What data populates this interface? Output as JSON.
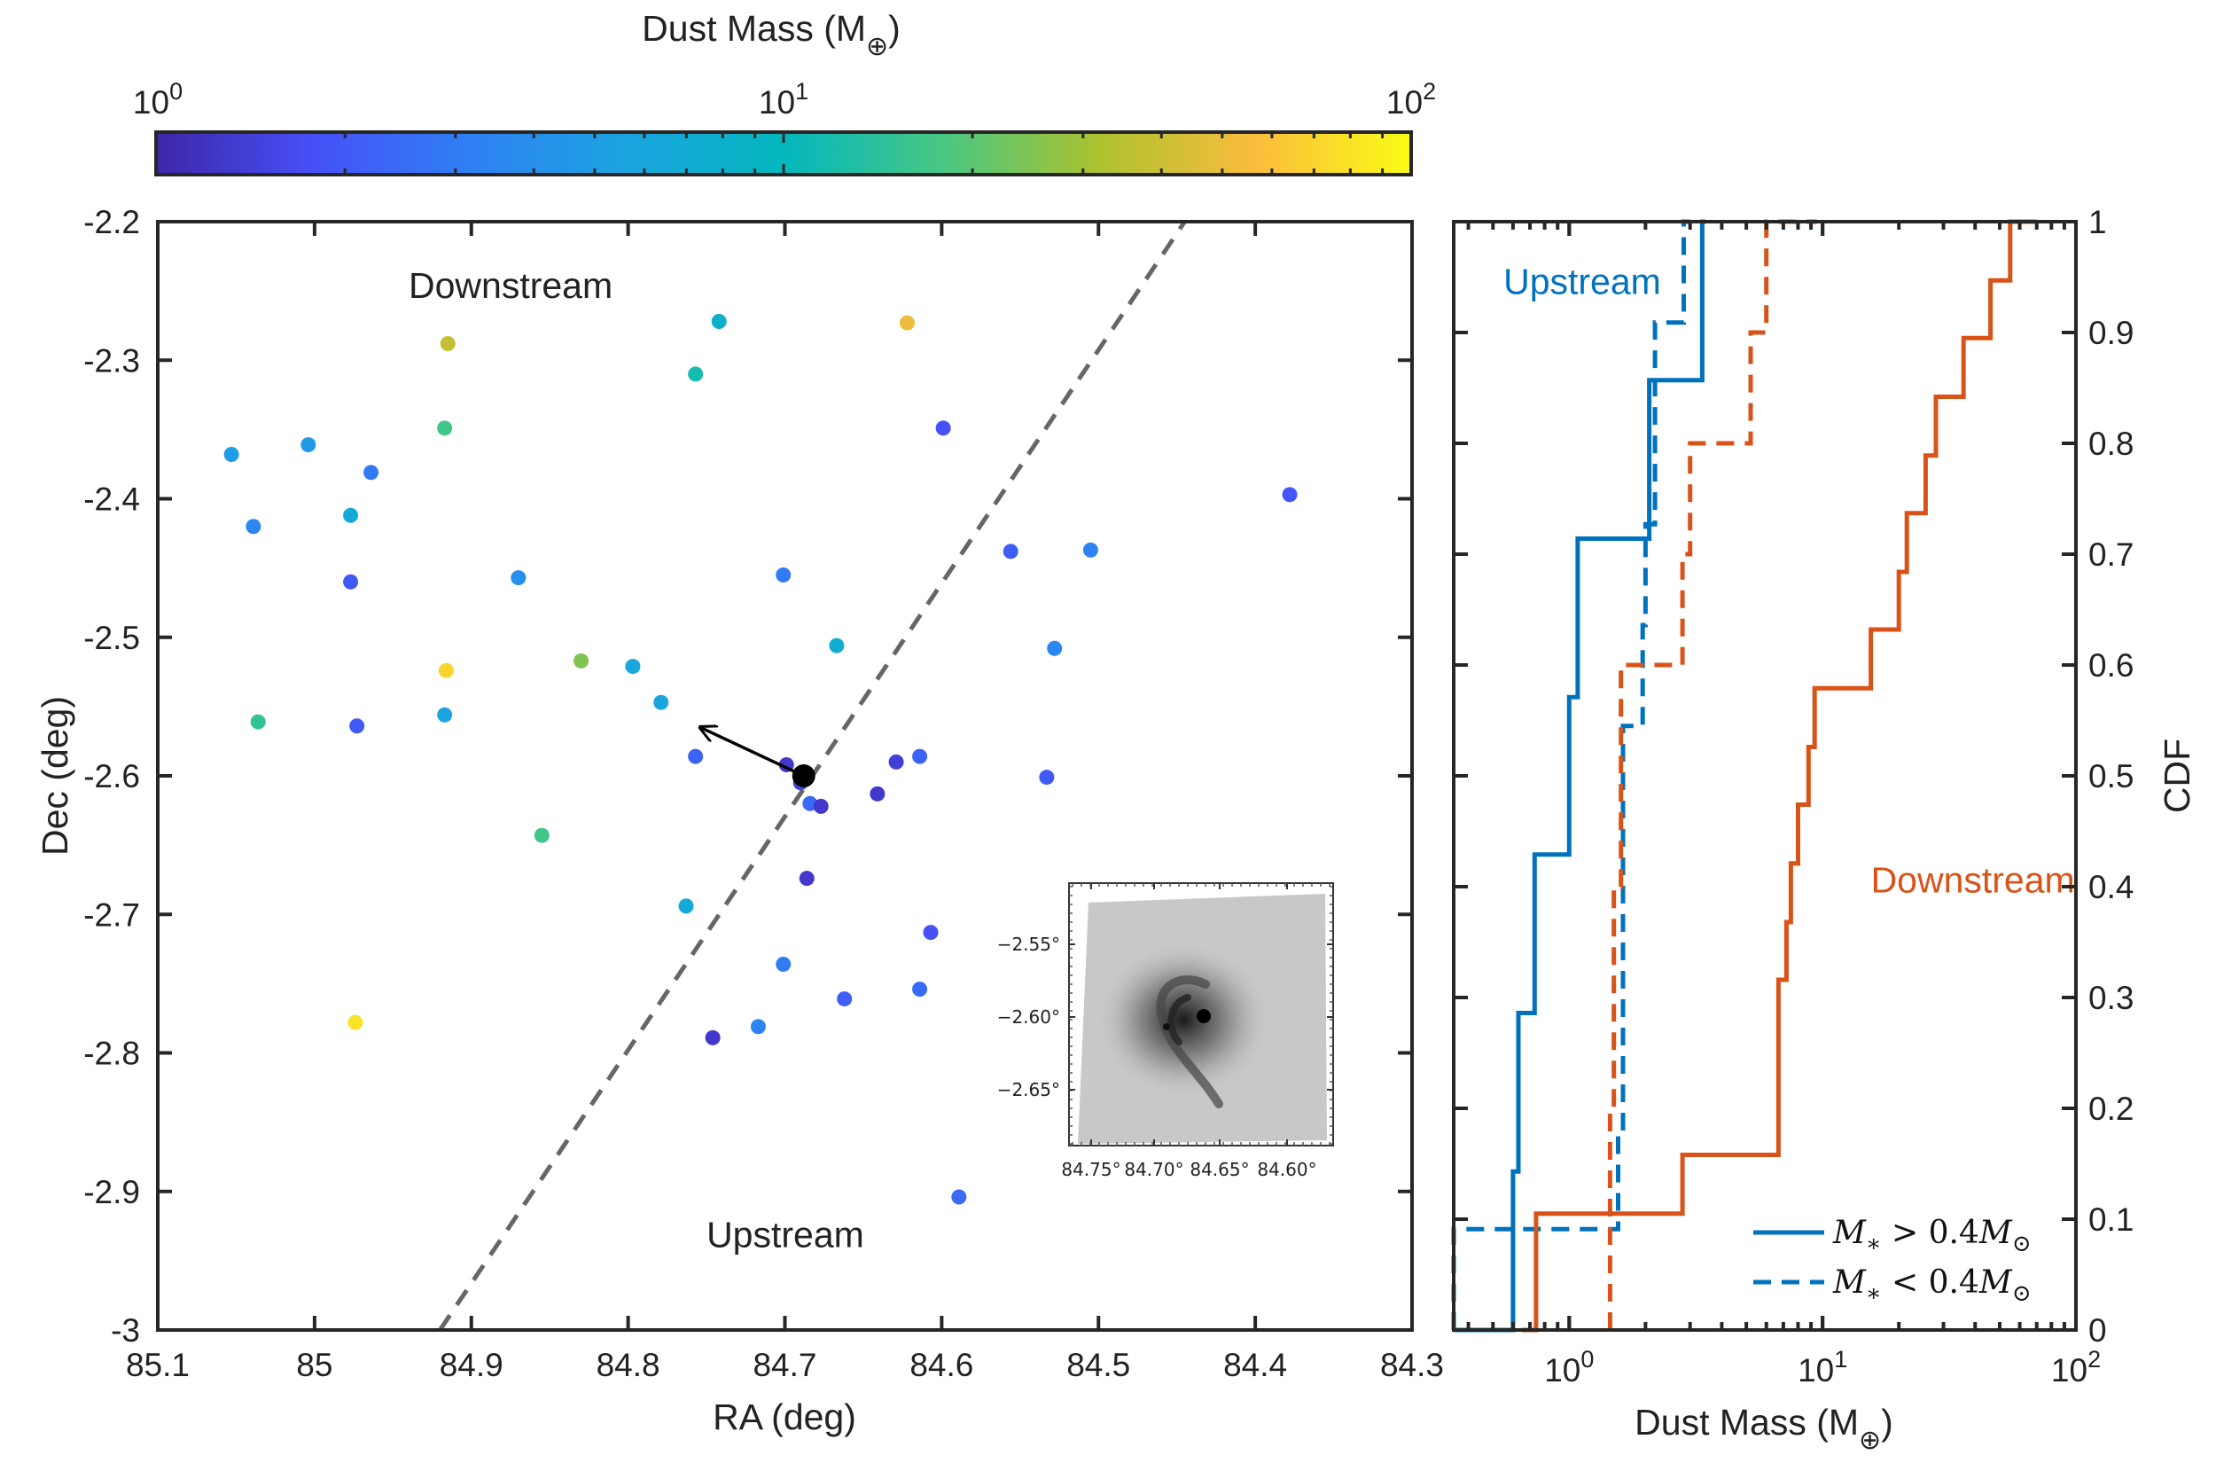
{
  "colors": {
    "blue": "#0072bd",
    "orange": "#d95319",
    "dashed_line": "#666666",
    "axis": "#262626"
  },
  "chart_data": [
    {
      "type": "colorbar",
      "label_text": "Dust Mass (M",
      "label_symbol": "⊕",
      "label_close": ")",
      "scale": "log",
      "range": [
        1,
        100
      ],
      "tick_labels": [
        {
          "value": 1,
          "base": "10",
          "exp": "0"
        },
        {
          "value": 10,
          "base": "10",
          "exp": "1"
        },
        {
          "value": 100,
          "base": "10",
          "exp": "2"
        }
      ],
      "colormap": "parula"
    },
    {
      "type": "scatter",
      "xlabel": "RA (deg)",
      "ylabel": "Dec (deg)",
      "xlim": [
        85.1,
        84.3
      ],
      "ylim": [
        -3,
        -2.2
      ],
      "xticks": [
        "85.1",
        "85",
        "84.9",
        "84.8",
        "84.7",
        "84.6",
        "84.5",
        "84.4",
        "84.3"
      ],
      "yticks": [
        "-2.2",
        "-2.3",
        "-2.4",
        "-2.5",
        "-2.6",
        "-2.7",
        "-2.8",
        "-2.9",
        "-3"
      ],
      "annotations": [
        {
          "text": "Downstream",
          "ra": 84.94,
          "dec": -2.255
        },
        {
          "text": "Upstream",
          "ra": 84.75,
          "dec": -2.94
        }
      ],
      "division_line": [
        [
          84.92,
          -3.0
        ],
        [
          84.445,
          -2.2
        ]
      ],
      "center": {
        "ra": 84.688,
        "dec": -2.6
      },
      "motion_arrow": {
        "from": [
          84.688,
          -2.6
        ],
        "to": [
          84.754,
          -2.565
        ]
      },
      "points": [
        {
          "ra": 85.053,
          "dec": -2.368,
          "mass": 5.0
        },
        {
          "ra": 85.004,
          "dec": -2.361,
          "mass": 4.7
        },
        {
          "ra": 84.964,
          "dec": -2.381,
          "mass": 3.0
        },
        {
          "ra": 85.039,
          "dec": -2.42,
          "mass": 3.5
        },
        {
          "ra": 84.977,
          "dec": -2.412,
          "mass": 6.5
        },
        {
          "ra": 84.977,
          "dec": -2.46,
          "mass": 2.0
        },
        {
          "ra": 84.915,
          "dec": -2.288,
          "mass": 38
        },
        {
          "ra": 84.917,
          "dec": -2.349,
          "mass": 17
        },
        {
          "ra": 84.742,
          "dec": -2.272,
          "mass": 8.0
        },
        {
          "ra": 84.757,
          "dec": -2.31,
          "mass": 11.5
        },
        {
          "ra": 84.622,
          "dec": -2.273,
          "mass": 50
        },
        {
          "ra": 84.599,
          "dec": -2.349,
          "mass": 1.8
        },
        {
          "ra": 84.378,
          "dec": -2.397,
          "mass": 1.9
        },
        {
          "ra": 84.87,
          "dec": -2.457,
          "mass": 4.0
        },
        {
          "ra": 84.701,
          "dec": -2.455,
          "mass": 3.0
        },
        {
          "ra": 84.556,
          "dec": -2.438,
          "mass": 2.1
        },
        {
          "ra": 84.505,
          "dec": -2.437,
          "mass": 3.3
        },
        {
          "ra": 84.667,
          "dec": -2.506,
          "mass": 7.5
        },
        {
          "ra": 84.528,
          "dec": -2.508,
          "mass": 3.5
        },
        {
          "ra": 85.036,
          "dec": -2.561,
          "mass": 15
        },
        {
          "ra": 84.973,
          "dec": -2.564,
          "mass": 2.0
        },
        {
          "ra": 84.916,
          "dec": -2.524,
          "mass": 70
        },
        {
          "ra": 84.917,
          "dec": -2.556,
          "mass": 5.5
        },
        {
          "ra": 84.83,
          "dec": -2.517,
          "mass": 25
        },
        {
          "ra": 84.797,
          "dec": -2.521,
          "mass": 6.0
        },
        {
          "ra": 84.779,
          "dec": -2.547,
          "mass": 5.8
        },
        {
          "ra": 84.757,
          "dec": -2.586,
          "mass": 2.2
        },
        {
          "ra": 84.699,
          "dec": -2.592,
          "mass": 1.3
        },
        {
          "ra": 84.69,
          "dec": -2.605,
          "mass": 1.6
        },
        {
          "ra": 84.629,
          "dec": -2.59,
          "mass": 1.4
        },
        {
          "ra": 84.614,
          "dec": -2.586,
          "mass": 2.2
        },
        {
          "ra": 84.641,
          "dec": -2.613,
          "mass": 1.3
        },
        {
          "ra": 84.684,
          "dec": -2.62,
          "mass": 2.4
        },
        {
          "ra": 84.677,
          "dec": -2.622,
          "mass": 1.3
        },
        {
          "ra": 84.533,
          "dec": -2.601,
          "mass": 2.0
        },
        {
          "ra": 84.855,
          "dec": -2.643,
          "mass": 17
        },
        {
          "ra": 84.686,
          "dec": -2.674,
          "mass": 1.3
        },
        {
          "ra": 84.763,
          "dec": -2.694,
          "mass": 6.8
        },
        {
          "ra": 84.607,
          "dec": -2.713,
          "mass": 1.8
        },
        {
          "ra": 84.701,
          "dec": -2.736,
          "mass": 3.0
        },
        {
          "ra": 84.614,
          "dec": -2.754,
          "mass": 2.5
        },
        {
          "ra": 84.662,
          "dec": -2.761,
          "mass": 2.1
        },
        {
          "ra": 84.974,
          "dec": -2.778,
          "mass": 80
        },
        {
          "ra": 84.717,
          "dec": -2.781,
          "mass": 3.3
        },
        {
          "ra": 84.746,
          "dec": -2.789,
          "mass": 1.3
        },
        {
          "ra": 84.589,
          "dec": -2.904,
          "mass": 2.4
        }
      ]
    },
    {
      "type": "image-inset",
      "description_hidden": false,
      "yticks": [
        "−2.55°",
        "−2.60°",
        "−2.65°"
      ],
      "xticks": [
        "84.75°",
        "84.70°",
        "84.65°",
        "84.60°"
      ]
    },
    {
      "type": "line",
      "xlabel_text": "Dust Mass (M",
      "xlabel_symbol": "⊕",
      "xlabel_close": ")",
      "ylabel": "CDF",
      "xscale": "log",
      "xlim": [
        0.35,
        100
      ],
      "ylim": [
        0,
        1
      ],
      "xtick_labels": [
        {
          "value": 1,
          "base": "10",
          "exp": "0"
        },
        {
          "value": 10,
          "base": "10",
          "exp": "1"
        },
        {
          "value": 100,
          "base": "10",
          "exp": "2"
        }
      ],
      "yticks": [
        "0",
        "0.1",
        "0.2",
        "0.3",
        "0.4",
        "0.5",
        "0.6",
        "0.7",
        "0.8",
        "0.9",
        "1"
      ],
      "annotations": [
        {
          "text": "Upstream",
          "color": "blue",
          "x": 0.55,
          "y": 0.935
        },
        {
          "text": "Downstream",
          "color": "orange",
          "x": 15.5,
          "y": 0.395
        }
      ],
      "legend": [
        {
          "lhs": "M",
          "sub": "∗",
          "op": " > 0.4",
          "rhs": "M",
          "rsub": "⊙",
          "style": "solid"
        },
        {
          "lhs": "M",
          "sub": "∗",
          "op": " < 0.4",
          "rhs": "M",
          "rsub": "⊙",
          "style": "dashed"
        }
      ],
      "series": [
        {
          "name": "Upstream M* > 0.4",
          "color": "blue",
          "style": "solid",
          "x": [
            0.35,
            0.6,
            0.63,
            0.73,
            1.0,
            1.08,
            2.07,
            3.35,
            3.45
          ],
          "cdf": [
            0,
            0.143,
            0.286,
            0.429,
            0.571,
            0.714,
            0.857,
            1.0,
            1.0
          ]
        },
        {
          "name": "Upstream M* < 0.4",
          "color": "blue",
          "style": "dashed",
          "x": [
            0.35,
            1.56,
            1.63,
            1.95,
            2.0,
            2.18,
            2.83,
            3.0
          ],
          "cdf": [
            0.091,
            0.182,
            0.545,
            0.636,
            0.727,
            0.909,
            1.0,
            1.0
          ]
        },
        {
          "name": "Downstream M* > 0.4",
          "color": "orange",
          "style": "solid",
          "x": [
            0.65,
            0.74,
            2.8,
            6.7,
            7.2,
            7.5,
            8.0,
            8.8,
            9.3,
            15.5,
            20,
            21.5,
            25.5,
            28,
            36,
            46,
            55,
            62,
            65,
            70
          ],
          "cdf": [
            0,
            0.105,
            0.158,
            0.316,
            0.368,
            0.421,
            0.474,
            0.526,
            0.579,
            0.632,
            0.684,
            0.737,
            0.789,
            0.842,
            0.895,
            0.947,
            1.0,
            1.0,
            1.0,
            1.0
          ]
        },
        {
          "name": "Downstream M* < 0.4",
          "color": "orange",
          "style": "dashed",
          "x": [
            1.45,
            1.5,
            1.6,
            2.8,
            3.0,
            5.2,
            6.0,
            6.3,
            9.2,
            9.5
          ],
          "cdf": [
            0.2,
            0.4,
            0.6,
            0.7,
            0.8,
            0.9,
            1.0,
            1.0,
            1.0,
            1.0
          ]
        }
      ]
    }
  ]
}
